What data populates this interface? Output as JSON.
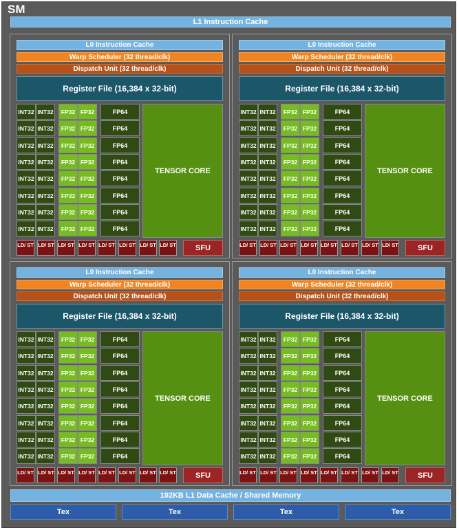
{
  "sm_label": "SM",
  "l1_instruction_cache": "L1 Instruction Cache",
  "l1_data_cache": "192KB L1 Data Cache / Shared Memory",
  "tex_units": [
    "Tex",
    "Tex",
    "Tex",
    "Tex"
  ],
  "partition": {
    "l0_cache": "L0 Instruction Cache",
    "warp_scheduler": "Warp Scheduler (32 thread/clk)",
    "dispatch_unit": "Dispatch Unit (32 thread/clk)",
    "register_file": "Register File (16,384 x 32-bit)",
    "int32": "INT32",
    "fp32": "FP32",
    "fp64": "FP64",
    "tensor_core": "TENSOR CORE",
    "ld_st": "LD/ ST",
    "sfu": "SFU"
  },
  "partition_count": 4,
  "core_rows": 8,
  "ld_st_units": 8,
  "colors": {
    "background": "#5a5a5a",
    "cache": "#74b3df",
    "warp_scheduler": "#ef8420",
    "dispatch_unit": "#b65218",
    "register_file": "#1b5669",
    "int32": "#2f4a12",
    "fp32": "#76bc21",
    "fp64": "#2f4a12",
    "tensor_core": "#559012",
    "ld_st": "#7d1212",
    "sfu": "#9b2424",
    "tex": "#2d5da8"
  }
}
